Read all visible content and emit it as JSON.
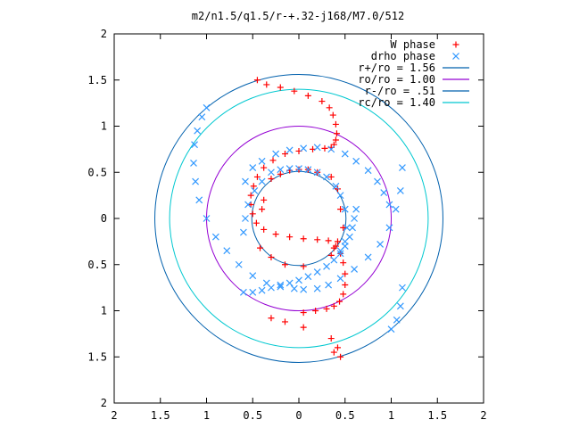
{
  "chart_data": {
    "type": "scatter",
    "title": "m2/n1.5/q1.5/r-+.32-j168/M7.0/512",
    "xlabel": "",
    "ylabel": "",
    "xlim": [
      -2,
      2
    ],
    "ylim": [
      -2,
      2
    ],
    "grid": false,
    "legend_placement": "top-right",
    "x_ticks": [
      -2,
      -1.5,
      -1,
      -0.5,
      0,
      0.5,
      1,
      1.5,
      2
    ],
    "y_ticks": [
      -2,
      -1.5,
      -1,
      -0.5,
      0,
      0.5,
      1,
      1.5,
      2
    ],
    "x_tick_labels": [
      "2",
      "1.5",
      "1",
      "0.5",
      "0",
      "0.5",
      "1",
      "1.5",
      "2"
    ],
    "y_tick_labels": [
      "2",
      "1.5",
      "1",
      "0.5",
      "0",
      "0.5",
      "1",
      "1.5",
      "2"
    ],
    "circles": [
      {
        "name": "r+/ro = 1.56",
        "radius": 1.56,
        "color": "#0060ad"
      },
      {
        "name": "ro/ro = 1.00",
        "radius": 1.0,
        "color": "#9400d3"
      },
      {
        "name": "r-/ro = .51",
        "radius": 0.51,
        "color": "#0060ad"
      },
      {
        "name": "rc/ro = 1.40",
        "radius": 1.4,
        "color": "#00c8d0"
      }
    ],
    "series": [
      {
        "name": "W phase",
        "marker": "plus",
        "color": "#ff0000",
        "x": [
          -0.45,
          -0.35,
          -0.2,
          -0.05,
          0.1,
          0.25,
          0.33,
          0.37,
          0.4,
          0.41,
          0.4,
          0.38,
          0.35,
          0.28,
          0.15,
          0.0,
          -0.15,
          -0.28,
          -0.38,
          -0.45,
          -0.49,
          -0.52,
          -0.52,
          -0.5,
          -0.46,
          -0.38,
          -0.25,
          -0.1,
          0.05,
          0.2,
          0.32,
          0.4,
          0.45,
          0.48,
          0.5,
          0.5,
          0.48,
          0.44,
          0.38,
          0.3,
          0.18,
          0.05,
          -0.3,
          -0.15,
          0.05,
          0.35,
          0.42,
          0.45,
          0.38,
          -0.3,
          -0.15,
          0.05,
          -0.42,
          -0.4,
          -0.38,
          0.35,
          0.42,
          0.45,
          0.48,
          0.35,
          0.38,
          0.42,
          0.2,
          0.1,
          0.0,
          -0.1,
          -0.2,
          -0.3
        ],
        "y": [
          1.5,
          1.45,
          1.42,
          1.38,
          1.33,
          1.27,
          1.2,
          1.12,
          1.02,
          0.92,
          0.85,
          0.8,
          0.77,
          0.76,
          0.75,
          0.73,
          0.7,
          0.63,
          0.55,
          0.45,
          0.35,
          0.25,
          0.15,
          0.05,
          -0.05,
          -0.12,
          -0.17,
          -0.2,
          -0.22,
          -0.23,
          -0.24,
          -0.3,
          -0.38,
          -0.48,
          -0.6,
          -0.72,
          -0.82,
          -0.9,
          -0.95,
          -0.98,
          -1.0,
          -1.02,
          -1.08,
          -1.12,
          -1.18,
          -1.3,
          -1.4,
          -1.5,
          -1.45,
          -0.42,
          -0.5,
          -0.52,
          -0.32,
          0.1,
          0.2,
          0.45,
          0.32,
          0.1,
          -0.1,
          -0.4,
          -0.32,
          -0.25,
          0.5,
          0.53,
          0.53,
          0.52,
          0.48,
          0.43
        ]
      },
      {
        "name": "drho phase",
        "marker": "cross",
        "color": "#3399ff",
        "x": [
          -1.0,
          -1.05,
          -1.1,
          -1.13,
          -1.14,
          -1.12,
          -1.08,
          -1.0,
          -0.9,
          -0.78,
          -0.65,
          -0.5,
          -0.35,
          -0.2,
          -0.05,
          0.05,
          0.2,
          0.32,
          0.45,
          0.6,
          0.75,
          0.88,
          0.98,
          1.05,
          1.1,
          1.12,
          1.12,
          1.1,
          1.06,
          1.0,
          -0.6,
          -0.5,
          -0.4,
          -0.3,
          -0.2,
          -0.1,
          0.0,
          0.1,
          0.2,
          0.3,
          0.38,
          0.45,
          0.5,
          0.55,
          0.58,
          0.6,
          0.62,
          -0.4,
          -0.48,
          -0.55,
          -0.58,
          -0.6,
          -0.58,
          -0.5,
          -0.4,
          -0.25,
          -0.1,
          0.05,
          0.2,
          0.35,
          0.5,
          0.62,
          0.75,
          0.85,
          0.92,
          0.98,
          -0.3,
          -0.2,
          -0.1,
          0.0,
          0.1,
          0.2,
          0.3,
          0.4,
          0.45,
          0.5,
          0.52,
          0.5,
          0.45
        ],
        "y": [
          1.2,
          1.1,
          0.95,
          0.8,
          0.6,
          0.4,
          0.2,
          0.0,
          -0.2,
          -0.35,
          -0.5,
          -0.62,
          -0.7,
          -0.74,
          -0.76,
          -0.77,
          -0.76,
          -0.72,
          -0.65,
          -0.55,
          -0.42,
          -0.28,
          -0.1,
          0.1,
          0.3,
          0.55,
          -0.75,
          -0.95,
          -1.1,
          -1.2,
          -0.8,
          -0.8,
          -0.78,
          -0.75,
          -0.72,
          -0.7,
          -0.67,
          -0.63,
          -0.58,
          -0.52,
          -0.45,
          -0.38,
          -0.3,
          -0.2,
          -0.1,
          0.0,
          0.1,
          0.4,
          0.3,
          0.15,
          0.0,
          -0.15,
          0.4,
          0.55,
          0.62,
          0.7,
          0.74,
          0.76,
          0.77,
          0.75,
          0.7,
          0.62,
          0.52,
          0.4,
          0.28,
          0.15,
          0.5,
          0.53,
          0.54,
          0.54,
          0.53,
          0.5,
          0.45,
          0.35,
          0.25,
          0.1,
          -0.1,
          -0.25,
          -0.35
        ]
      }
    ]
  }
}
